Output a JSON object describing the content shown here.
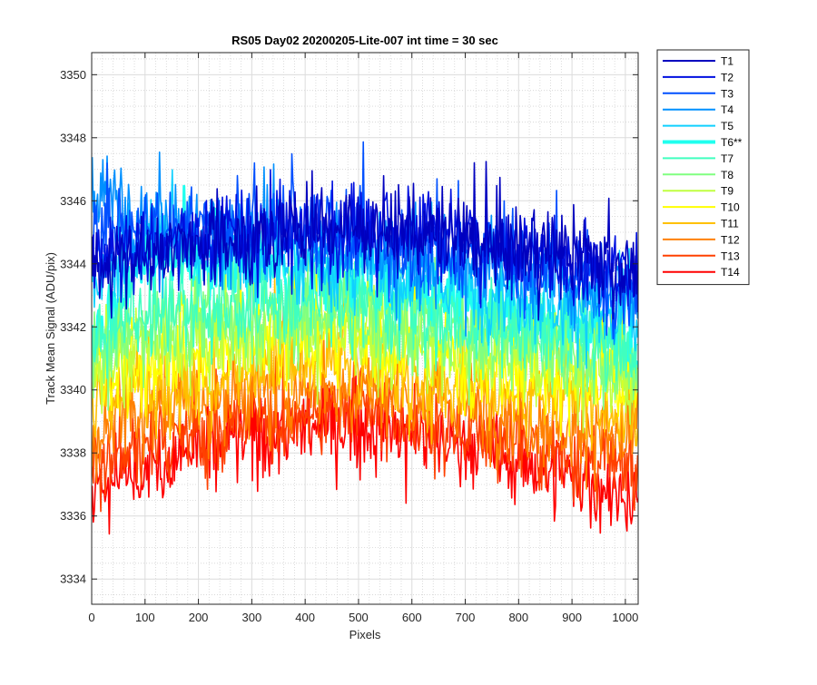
{
  "chart_data": {
    "type": "line",
    "title": "RS05 Day02 20200205-Lite-007 int time = 30 sec",
    "xlabel": "Pixels",
    "ylabel": "Track Mean Signal (ADU/pix)",
    "xlim": [
      0,
      1024
    ],
    "ylim": [
      3333.2,
      3350.7
    ],
    "xticks": [
      0,
      100,
      200,
      300,
      400,
      500,
      600,
      700,
      800,
      900,
      1000
    ],
    "yticks": [
      3334,
      3336,
      3338,
      3340,
      3342,
      3344,
      3346,
      3348,
      3350
    ],
    "grid": true,
    "minor_grid": true,
    "legend_position": "outside-top-right",
    "series": [
      {
        "name": "T1",
        "color": "#0000bf",
        "highlight": false,
        "baseline": [
          [
            0,
            3344.0
          ],
          [
            150,
            3344.4
          ],
          [
            300,
            3344.9
          ],
          [
            450,
            3345.2
          ],
          [
            600,
            3345.0
          ],
          [
            750,
            3344.6
          ],
          [
            900,
            3344.3
          ],
          [
            1024,
            3343.8
          ]
        ]
      },
      {
        "name": "T2",
        "color": "#0010e0",
        "highlight": false,
        "baseline": [
          [
            0,
            3344.2
          ],
          [
            150,
            3344.6
          ],
          [
            300,
            3345.0
          ],
          [
            450,
            3345.2
          ],
          [
            600,
            3345.0
          ],
          [
            750,
            3344.5
          ],
          [
            900,
            3344.0
          ],
          [
            1024,
            3343.5
          ]
        ]
      },
      {
        "name": "T3",
        "color": "#0050ff",
        "highlight": false,
        "baseline": [
          [
            0,
            3344.8
          ],
          [
            150,
            3345.2
          ],
          [
            300,
            3345.2
          ],
          [
            450,
            3345.0
          ],
          [
            600,
            3344.6
          ],
          [
            750,
            3344.2
          ],
          [
            900,
            3343.8
          ],
          [
            1024,
            3343.2
          ]
        ]
      },
      {
        "name": "T4",
        "color": "#0090ff",
        "highlight": false,
        "baseline": [
          [
            0,
            3346.3
          ],
          [
            100,
            3345.6
          ],
          [
            250,
            3345.0
          ],
          [
            450,
            3344.5
          ],
          [
            600,
            3344.2
          ],
          [
            750,
            3343.8
          ],
          [
            900,
            3343.3
          ],
          [
            1024,
            3342.8
          ]
        ]
      },
      {
        "name": "T5",
        "color": "#10d0ff",
        "highlight": false,
        "baseline": [
          [
            0,
            3343.5
          ],
          [
            100,
            3344.6
          ],
          [
            250,
            3344.3
          ],
          [
            450,
            3344.0
          ],
          [
            600,
            3343.6
          ],
          [
            750,
            3343.2
          ],
          [
            900,
            3342.6
          ],
          [
            1024,
            3342.0
          ]
        ]
      },
      {
        "name": "T6**",
        "color": "#20ffef",
        "highlight": true,
        "baseline": [
          [
            0,
            3341.0
          ],
          [
            100,
            3344.5
          ],
          [
            250,
            3344.0
          ],
          [
            450,
            3343.5
          ],
          [
            600,
            3343.0
          ],
          [
            750,
            3342.5
          ],
          [
            900,
            3342.0
          ],
          [
            1024,
            3341.0
          ]
        ]
      },
      {
        "name": "T7",
        "color": "#40ffbf",
        "highlight": false,
        "baseline": [
          [
            0,
            3341.8
          ],
          [
            150,
            3342.6
          ],
          [
            300,
            3342.8
          ],
          [
            450,
            3342.8
          ],
          [
            600,
            3342.5
          ],
          [
            750,
            3342.0
          ],
          [
            900,
            3341.6
          ],
          [
            1024,
            3341.0
          ]
        ]
      },
      {
        "name": "T8",
        "color": "#80ff80",
        "highlight": false,
        "baseline": [
          [
            0,
            3341.3
          ],
          [
            150,
            3342.0
          ],
          [
            300,
            3342.2
          ],
          [
            450,
            3342.4
          ],
          [
            600,
            3342.0
          ],
          [
            750,
            3341.6
          ],
          [
            900,
            3341.2
          ],
          [
            1024,
            3340.6
          ]
        ]
      },
      {
        "name": "T9",
        "color": "#c0ff40",
        "highlight": false,
        "baseline": [
          [
            0,
            3340.8
          ],
          [
            150,
            3341.5
          ],
          [
            300,
            3341.8
          ],
          [
            450,
            3342.0
          ],
          [
            600,
            3341.6
          ],
          [
            750,
            3341.2
          ],
          [
            900,
            3340.8
          ],
          [
            1024,
            3340.2
          ]
        ]
      },
      {
        "name": "T10",
        "color": "#ffff00",
        "highlight": false,
        "baseline": [
          [
            0,
            3340.3
          ],
          [
            150,
            3341.0
          ],
          [
            300,
            3341.4
          ],
          [
            450,
            3341.6
          ],
          [
            600,
            3341.2
          ],
          [
            750,
            3340.8
          ],
          [
            900,
            3340.3
          ],
          [
            1024,
            3339.8
          ]
        ]
      },
      {
        "name": "T11",
        "color": "#ffc000",
        "highlight": false,
        "baseline": [
          [
            0,
            3339.6
          ],
          [
            150,
            3340.2
          ],
          [
            300,
            3340.6
          ],
          [
            450,
            3340.8
          ],
          [
            600,
            3340.5
          ],
          [
            750,
            3340.0
          ],
          [
            900,
            3339.6
          ],
          [
            1024,
            3339.1
          ]
        ]
      },
      {
        "name": "T12",
        "color": "#ff8000",
        "highlight": false,
        "baseline": [
          [
            0,
            3338.8
          ],
          [
            150,
            3339.5
          ],
          [
            300,
            3339.9
          ],
          [
            450,
            3340.1
          ],
          [
            600,
            3339.8
          ],
          [
            750,
            3339.3
          ],
          [
            900,
            3338.8
          ],
          [
            1024,
            3338.3
          ]
        ]
      },
      {
        "name": "T13",
        "color": "#ff4000",
        "highlight": false,
        "baseline": [
          [
            0,
            3337.6
          ],
          [
            150,
            3338.4
          ],
          [
            300,
            3339.0
          ],
          [
            450,
            3339.3
          ],
          [
            600,
            3339.0
          ],
          [
            750,
            3338.5
          ],
          [
            900,
            3338.0
          ],
          [
            1024,
            3337.3
          ]
        ]
      },
      {
        "name": "T14",
        "color": "#ff0000",
        "highlight": false,
        "baseline": [
          [
            0,
            3336.8
          ],
          [
            150,
            3337.8
          ],
          [
            300,
            3338.5
          ],
          [
            450,
            3338.9
          ],
          [
            600,
            3338.6
          ],
          [
            750,
            3338.0
          ],
          [
            900,
            3337.2
          ],
          [
            1024,
            3336.5
          ]
        ]
      }
    ]
  }
}
